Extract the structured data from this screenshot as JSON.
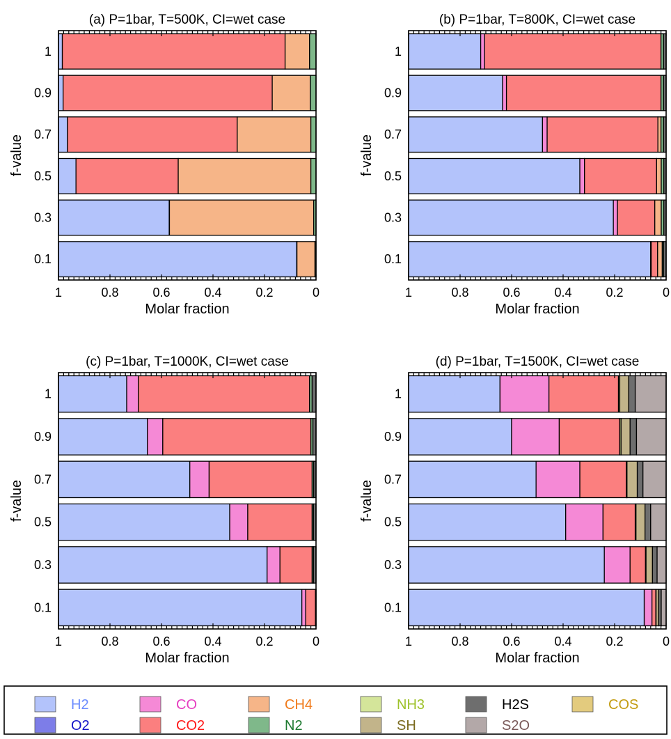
{
  "chart_data": [
    {
      "type": "bar",
      "orientation": "horizontal-stacked",
      "title": "(a)  P=1bar,  T=500K,  CI=wet case",
      "xlabel": "Molar fraction",
      "ylabel": "f-value",
      "xlim": [
        1,
        0
      ],
      "x_ticks": [
        "1",
        "0.8",
        "0.6",
        "0.4",
        "0.2",
        "0"
      ],
      "categories": [
        "1",
        "0.9",
        "0.7",
        "0.5",
        "0.3",
        "0.1"
      ],
      "series": [
        {
          "name": "H2",
          "values": [
            0.015,
            0.018,
            0.035,
            0.068,
            0.43,
            0.925
          ]
        },
        {
          "name": "CO",
          "values": [
            0,
            0,
            0,
            0,
            0,
            0
          ]
        },
        {
          "name": "CO2",
          "values": [
            0.865,
            0.812,
            0.659,
            0.397,
            0.001,
            0.001
          ]
        },
        {
          "name": "CH4",
          "values": [
            0.095,
            0.148,
            0.286,
            0.515,
            0.56,
            0.07
          ]
        },
        {
          "name": "N2",
          "values": [
            0.025,
            0.022,
            0.02,
            0.02,
            0.009,
            0.004
          ]
        }
      ]
    },
    {
      "type": "bar",
      "orientation": "horizontal-stacked",
      "title": "(b)  P=1bar,  T=800K,  CI=wet case",
      "xlabel": "Molar fraction",
      "ylabel": "f-value",
      "xlim": [
        1,
        0
      ],
      "x_ticks": [
        "1",
        "0.8",
        "0.6",
        "0.4",
        "0.2",
        "0"
      ],
      "categories": [
        "1",
        "0.9",
        "0.7",
        "0.5",
        "0.3",
        "0.1"
      ],
      "series": [
        {
          "name": "H2",
          "values": [
            0.28,
            0.365,
            0.52,
            0.665,
            0.795,
            0.94
          ]
        },
        {
          "name": "CO",
          "values": [
            0.015,
            0.015,
            0.018,
            0.018,
            0.016,
            0.002
          ]
        },
        {
          "name": "CO2",
          "values": [
            0.685,
            0.6,
            0.43,
            0.28,
            0.145,
            0.025
          ]
        },
        {
          "name": "CH4",
          "values": [
            0.0,
            0.0,
            0.012,
            0.018,
            0.025,
            0.018
          ]
        },
        {
          "name": "N2",
          "values": [
            0.01,
            0.01,
            0.01,
            0.01,
            0.01,
            0.005
          ]
        },
        {
          "name": "H2S",
          "values": [
            0.01,
            0.01,
            0.01,
            0.009,
            0.009,
            0.01
          ]
        }
      ]
    },
    {
      "type": "bar",
      "orientation": "horizontal-stacked",
      "title": "(c)  P=1bar,  T=1000K,  CI=wet case",
      "xlabel": "Molar fraction",
      "ylabel": "f-value",
      "xlim": [
        1,
        0
      ],
      "x_ticks": [
        "1",
        "0.8",
        "0.6",
        "0.4",
        "0.2",
        "0"
      ],
      "categories": [
        "1",
        "0.9",
        "0.7",
        "0.5",
        "0.3",
        "0.1"
      ],
      "series": [
        {
          "name": "H2",
          "values": [
            0.265,
            0.345,
            0.51,
            0.665,
            0.81,
            0.945
          ]
        },
        {
          "name": "CO",
          "values": [
            0.045,
            0.06,
            0.075,
            0.07,
            0.05,
            0.015
          ]
        },
        {
          "name": "CO2",
          "values": [
            0.665,
            0.575,
            0.4,
            0.25,
            0.125,
            0.038
          ]
        },
        {
          "name": "N2",
          "values": [
            0.01,
            0.008,
            0.006,
            0.005,
            0.005,
            0.001
          ]
        },
        {
          "name": "H2S",
          "values": [
            0.015,
            0.012,
            0.009,
            0.01,
            0.01,
            0.001
          ]
        }
      ]
    },
    {
      "type": "bar",
      "orientation": "horizontal-stacked",
      "title": "(d)  P=1bar,  T=1500K,  CI=wet case",
      "xlabel": "Molar fraction",
      "ylabel": "f-value",
      "xlim": [
        1,
        0
      ],
      "x_ticks": [
        "1",
        "0.8",
        "0.6",
        "0.4",
        "0.2",
        "0"
      ],
      "categories": [
        "1",
        "0.9",
        "0.7",
        "0.5",
        "0.3",
        "0.1"
      ],
      "series": [
        {
          "name": "H2",
          "values": [
            0.355,
            0.4,
            0.495,
            0.61,
            0.76,
            0.915
          ]
        },
        {
          "name": "CO",
          "values": [
            0.19,
            0.185,
            0.17,
            0.145,
            0.1,
            0.03
          ]
        },
        {
          "name": "CO2",
          "values": [
            0.27,
            0.235,
            0.18,
            0.125,
            0.06,
            0.015
          ]
        },
        {
          "name": "NH3",
          "values": [
            0.005,
            0.005,
            0.003,
            0.003,
            0.002,
            0.001
          ]
        },
        {
          "name": "SH",
          "values": [
            0.035,
            0.035,
            0.04,
            0.035,
            0.025,
            0.01
          ]
        },
        {
          "name": "H2S",
          "values": [
            0.025,
            0.025,
            0.022,
            0.022,
            0.018,
            0.01
          ]
        },
        {
          "name": "S2O",
          "values": [
            0.12,
            0.115,
            0.09,
            0.06,
            0.035,
            0.019
          ]
        }
      ]
    }
  ],
  "legend": {
    "items": [
      {
        "name": "H2",
        "fill": "#b3c3fb",
        "text_color": "#6b8cff"
      },
      {
        "name": "CO",
        "fill": "#f589d6",
        "text_color": "#e63ec0"
      },
      {
        "name": "CH4",
        "fill": "#f6b588",
        "text_color": "#f07a1a"
      },
      {
        "name": "NH3",
        "fill": "#d4e59a",
        "text_color": "#9ec22a"
      },
      {
        "name": "H2S",
        "fill": "#6e6e6e",
        "text_color": "#000000"
      },
      {
        "name": "COS",
        "fill": "#e3cb7e",
        "text_color": "#c39c12"
      },
      {
        "name": "O2",
        "fill": "#7d7de8",
        "text_color": "#1414c8"
      },
      {
        "name": "CO2",
        "fill": "#fb7f7f",
        "text_color": "#ff1a1a"
      },
      {
        "name": "N2",
        "fill": "#7fb88a",
        "text_color": "#1e7a30"
      },
      {
        "name": "SH",
        "fill": "#c2b48a",
        "text_color": "#7a6a1e"
      },
      {
        "name": "S2O",
        "fill": "#b3a8a8",
        "text_color": "#7a5a5a"
      }
    ]
  }
}
